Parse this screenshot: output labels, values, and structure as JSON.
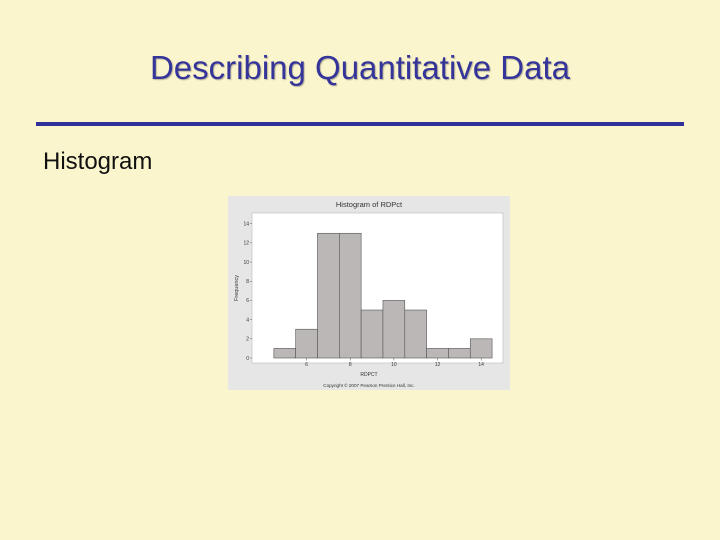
{
  "slide": {
    "title": "Describing Quantitative Data",
    "bullet": "Histogram"
  },
  "chart_data": {
    "type": "bar",
    "title": "Histogram of RDPct",
    "xlabel": "RDPCT",
    "ylabel": "Frequency",
    "bin_edges": [
      4.5,
      5.5,
      6.5,
      7.5,
      8.5,
      9.5,
      10.5,
      11.5,
      12.5,
      13.5,
      14.5
    ],
    "values": [
      1,
      3,
      13,
      13,
      5,
      6,
      5,
      1,
      1,
      2
    ],
    "xlim": [
      3.5,
      15.0
    ],
    "ylim": [
      0,
      14.8
    ],
    "x_ticks": [
      6,
      8,
      10,
      12,
      14
    ],
    "y_ticks": [
      0,
      2,
      4,
      6,
      8,
      10,
      12,
      14
    ],
    "grid": false,
    "copyright": "Copyright © 2007 Pearson Prentice Hall, Inc.",
    "colors": {
      "bar_fill": "#bcb7b7",
      "bar_stroke": "#555555",
      "plot_bg": "#ffffff",
      "figure_bg": "#e6e6e6"
    }
  }
}
